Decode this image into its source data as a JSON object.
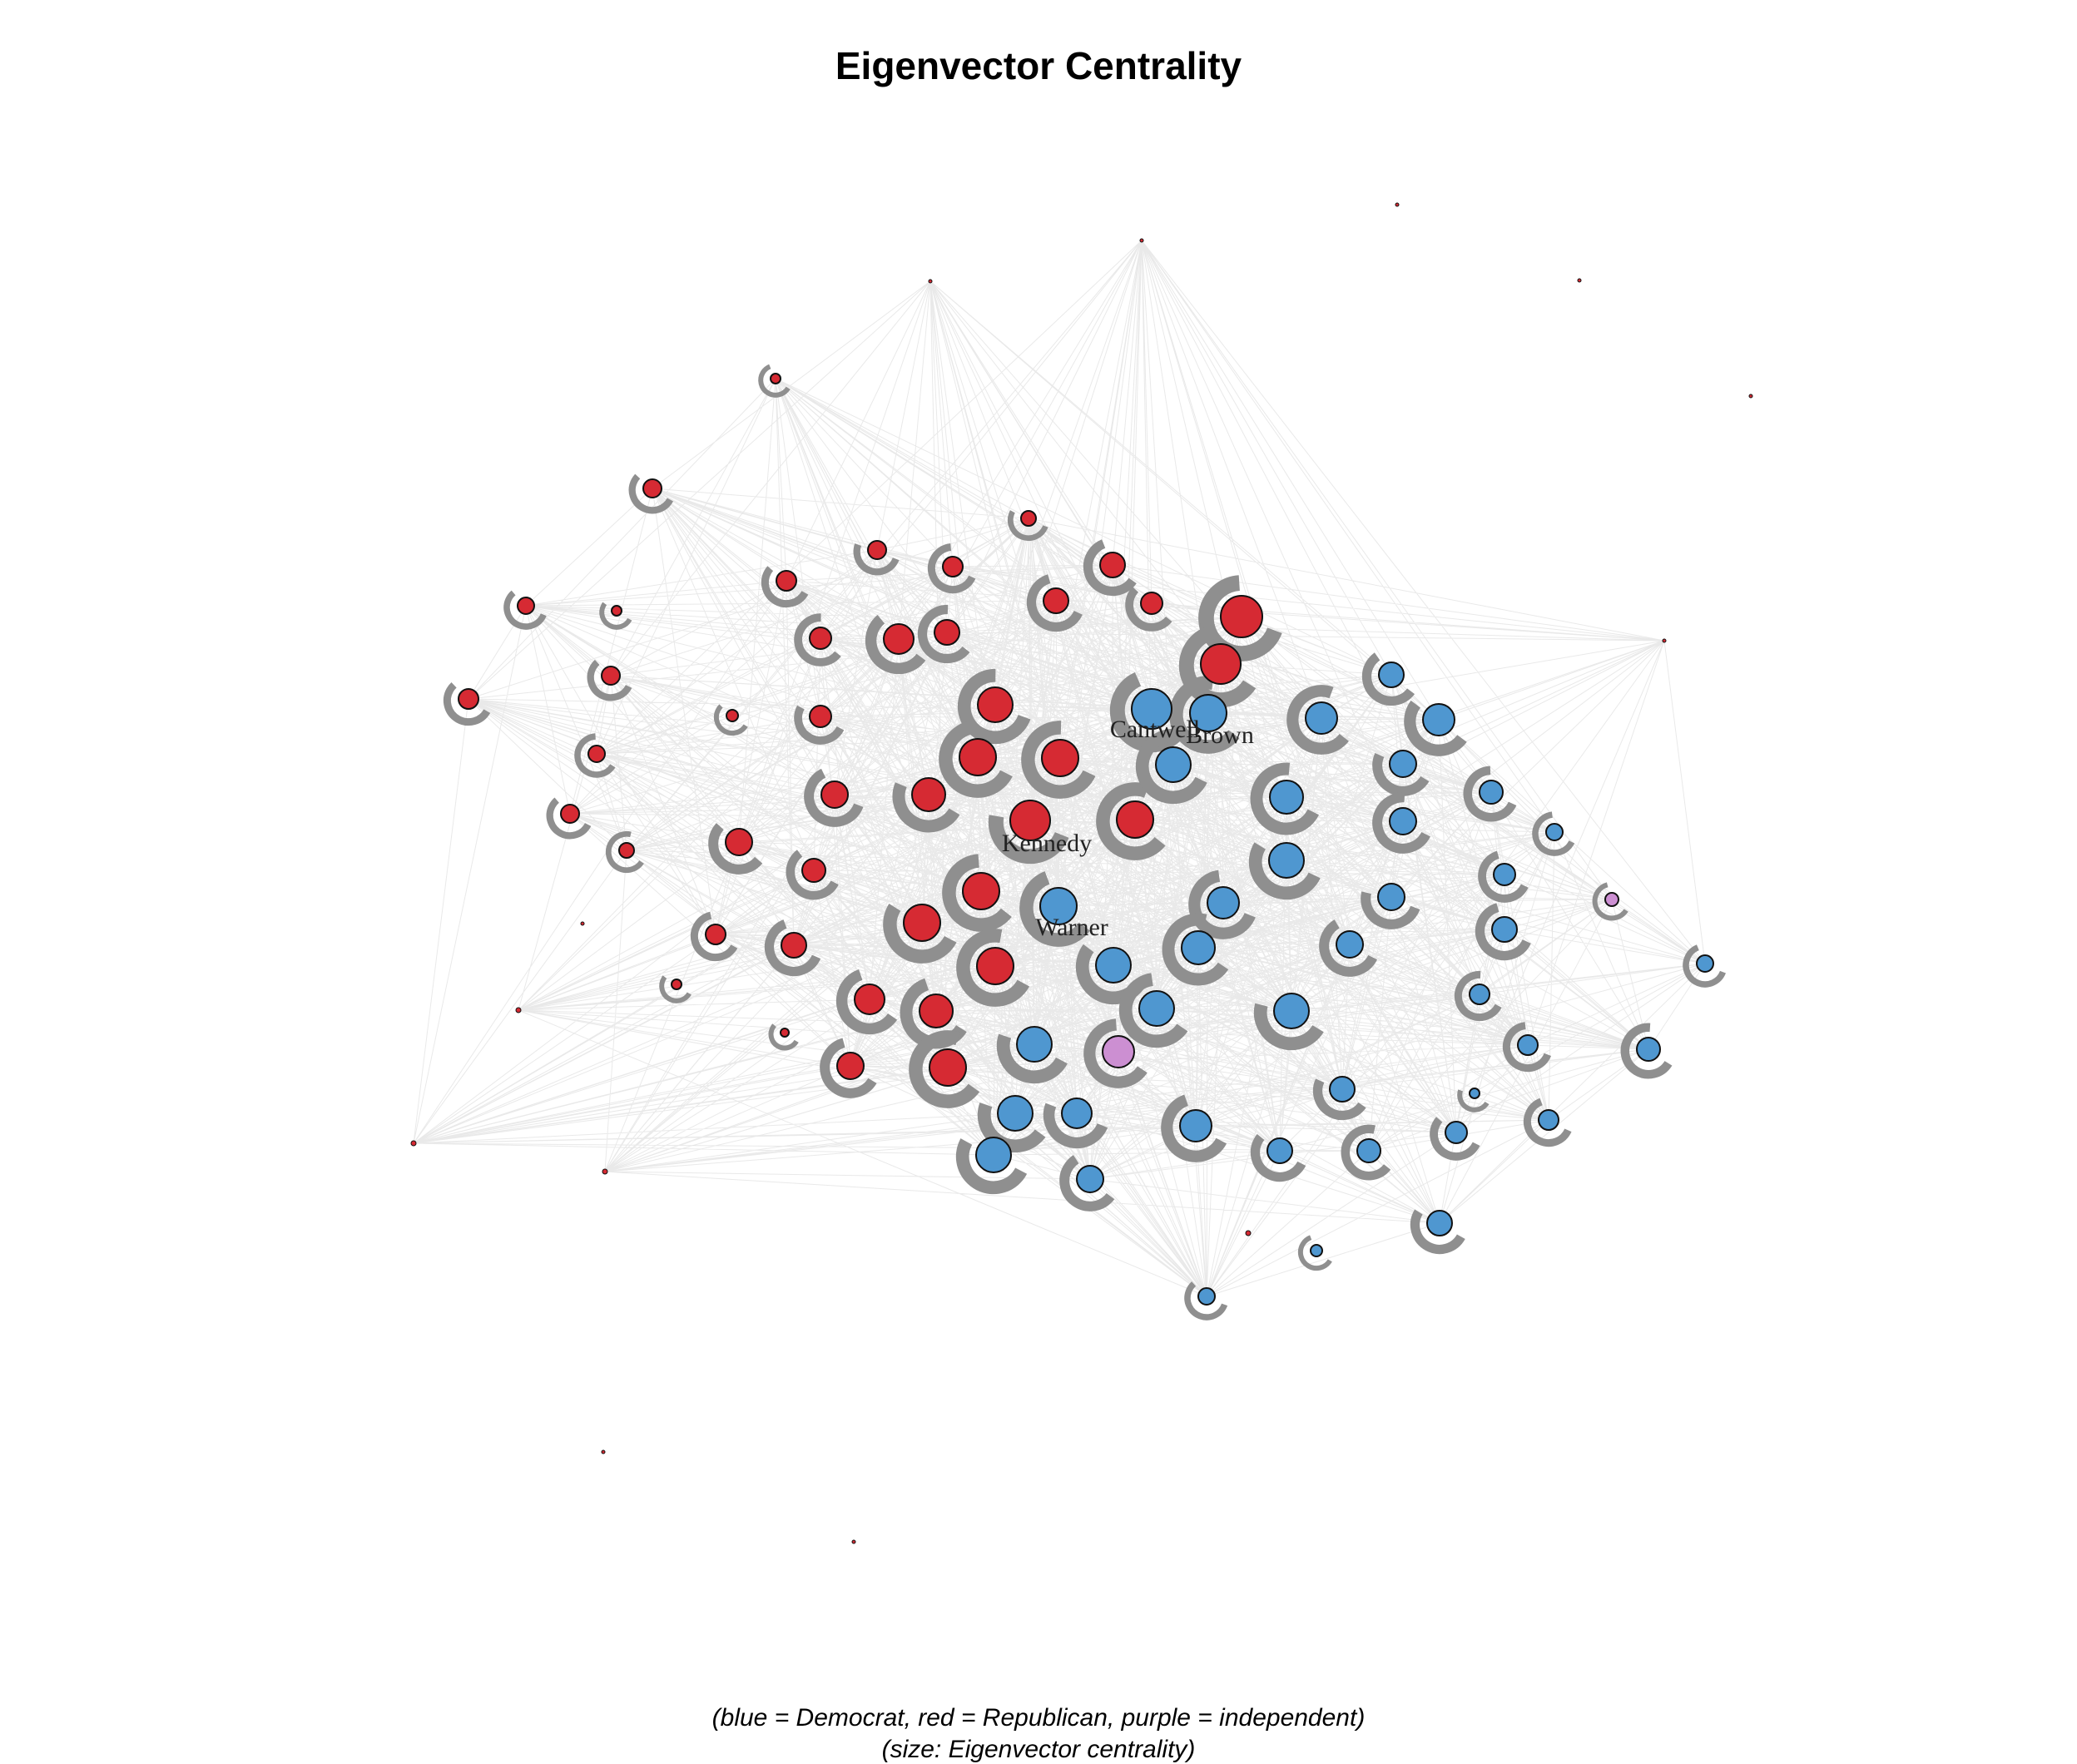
{
  "title": "Eigenvector Centrality",
  "caption_line1": "(blue = Democrat, red = Republican, purple = independent)",
  "caption_line2": "(size: Eigenvector centrality)",
  "colors": {
    "democrat": "#4f97d0",
    "republican": "#d62a33",
    "independent": "#cc8fd2",
    "edge": "#b0b0b0",
    "arrow_ring": "#8f8f8f"
  },
  "labels": {
    "cantwell": "Cantwell",
    "brown": "Brown",
    "kennedy": "Kennedy",
    "warner": "Warner"
  }
}
